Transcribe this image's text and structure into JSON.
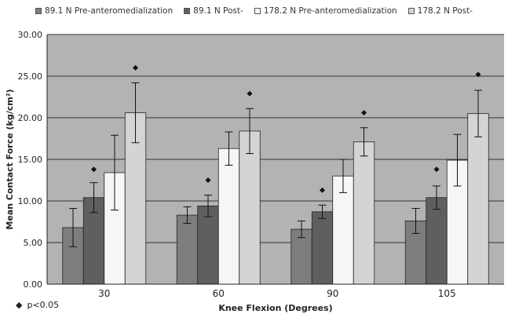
{
  "chart_data": {
    "type": "bar",
    "xlabel": "Knee Flexion (Degrees)",
    "ylabel": "Mean Contact Force (kg/cm²)",
    "ylim": [
      0,
      30
    ],
    "yticks": [
      "0.00",
      "5.00",
      "10.00",
      "15.00",
      "20.00",
      "25.00",
      "30.00"
    ],
    "categories": [
      "30",
      "60",
      "90",
      "105"
    ],
    "grid": true,
    "legend_position": "top",
    "series": [
      {
        "name": "89.1 N Pre-anteromedialization",
        "color": "#7d7d7d",
        "values": [
          6.8,
          8.3,
          6.6,
          7.6
        ],
        "errors": [
          2.3,
          1.0,
          1.0,
          1.5
        ]
      },
      {
        "name": "89.1 N Post-",
        "color": "#5f5f5f",
        "values": [
          10.4,
          9.4,
          8.7,
          10.4
        ],
        "errors": [
          1.8,
          1.3,
          0.8,
          1.4
        ]
      },
      {
        "name": "178.2 N Pre-anteromedialization",
        "color": "#f6f6f6",
        "values": [
          13.4,
          16.3,
          13.0,
          14.9
        ],
        "errors": [
          4.5,
          2.0,
          2.0,
          3.1
        ]
      },
      {
        "name": "178.2 N Post-",
        "color": "#d4d4d4",
        "values": [
          20.6,
          18.4,
          17.1,
          20.5
        ],
        "errors": [
          3.6,
          2.7,
          1.7,
          2.8
        ]
      }
    ],
    "significance_markers": [
      {
        "category": "30",
        "series": 1,
        "y": 13.8
      },
      {
        "category": "30",
        "series": 3,
        "y": 26.0
      },
      {
        "category": "60",
        "series": 1,
        "y": 12.5
      },
      {
        "category": "60",
        "series": 3,
        "y": 22.9
      },
      {
        "category": "90",
        "series": 1,
        "y": 11.3
      },
      {
        "category": "90",
        "series": 3,
        "y": 20.6
      },
      {
        "category": "105",
        "series": 1,
        "y": 13.8
      },
      {
        "category": "105",
        "series": 3,
        "y": 25.2
      }
    ],
    "plot_background": "#b3b3b3"
  },
  "footnote": {
    "marker": "◆",
    "text": "p<0.05"
  }
}
